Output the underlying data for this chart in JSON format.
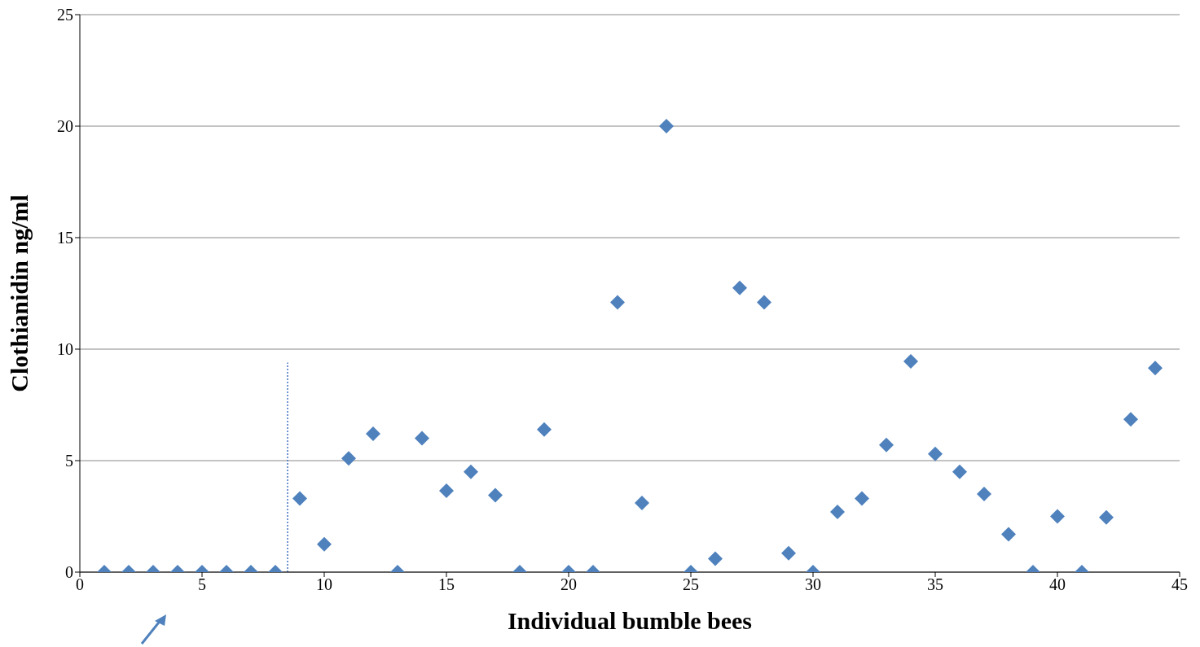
{
  "chart_data": {
    "type": "scatter",
    "xlabel": "Individual bumble bees",
    "ylabel": "Clothianidin ng/ml",
    "xlim": [
      0,
      45
    ],
    "xticks": [
      0,
      5,
      10,
      15,
      20,
      25,
      30,
      35,
      40,
      45
    ],
    "ylim": [
      0,
      25
    ],
    "yticks": [
      0,
      5,
      10,
      15,
      20,
      25
    ],
    "grid": "y",
    "marker": "diamond",
    "series": [
      {
        "color": "#4f81bd",
        "x": [
          1,
          2,
          3,
          4,
          5,
          6,
          7,
          8,
          9,
          10,
          11,
          12,
          13,
          14,
          15,
          16,
          17,
          18,
          19,
          20,
          21,
          22,
          23,
          24,
          25,
          26,
          27,
          28,
          29,
          30,
          31,
          32,
          33,
          34,
          35,
          36,
          37,
          38,
          39,
          40,
          41,
          42,
          43,
          44
        ],
        "values": [
          0,
          0,
          0,
          0,
          0,
          0,
          0,
          0,
          3.3,
          1.25,
          5.1,
          6.2,
          0,
          6.0,
          3.65,
          4.5,
          3.45,
          0,
          6.4,
          0,
          0,
          12.1,
          3.1,
          20.0,
          0,
          0.6,
          12.75,
          12.1,
          0.85,
          0,
          2.7,
          3.3,
          5.7,
          9.45,
          5.3,
          4.5,
          3.5,
          1.7,
          0,
          2.5,
          0,
          2.45,
          6.85,
          9.15
        ]
      },
      {
        "type": "line",
        "color": "#4472c4",
        "line_style": "dotted",
        "marker": "none",
        "x": [
          8.5,
          8.5
        ],
        "values": [
          0,
          9.4
        ]
      }
    ]
  }
}
